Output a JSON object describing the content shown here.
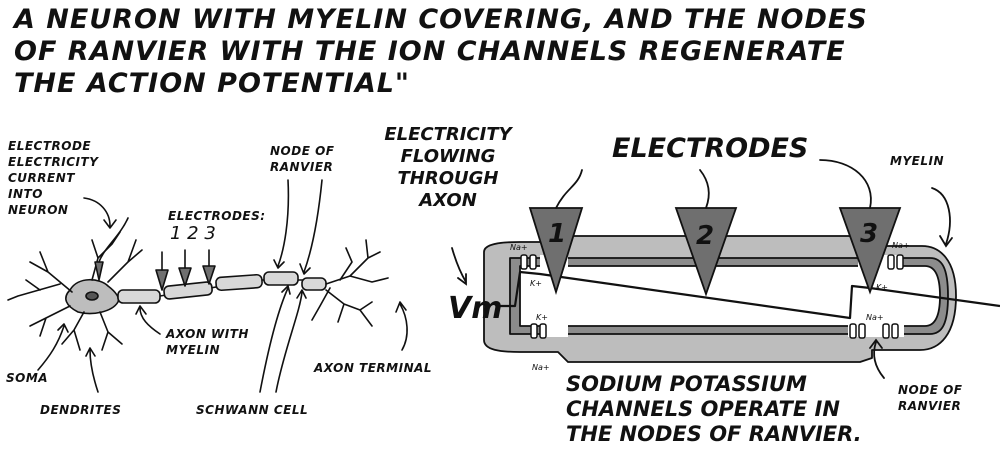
{
  "title": "A neuron with myelin covering, and the nodes of Ranvier with the ion channels regenerate the action potential\"",
  "left_diagram": {
    "electrode_current_label": [
      "Electrode",
      "electricity",
      "current",
      "into",
      "neuron"
    ],
    "electrodes_label": "Electrodes:",
    "electrode_numbers": "1 2 3",
    "node_label": [
      "Node of",
      "Ranvier"
    ],
    "axon_myelin_label": [
      "Axon with",
      "myelin"
    ],
    "soma_label": "Soma",
    "dendrites_label": "Dendrites",
    "schwann_label": "Schwann cell",
    "axon_terminal_label": "Axon terminal"
  },
  "right_diagram": {
    "flow_label": [
      "Electricity",
      "flowing",
      "through",
      "axon"
    ],
    "electrodes_title": "Electrodes",
    "electrode_numbers": [
      "1",
      "2",
      "3"
    ],
    "myelin_label": "Myelin",
    "vm_label": "Vm",
    "channels_text": [
      "Sodium potassium",
      "channels operate in",
      "the nodes of Ranvier."
    ],
    "node_label": [
      "Node of",
      "Ranvier"
    ],
    "ion_labels": [
      "Na+",
      "K+",
      "K+",
      "Na+",
      "Na+",
      "K+",
      "Na+"
    ]
  },
  "colors": {
    "ink": "#111111",
    "gray_light": "#bdbdbd",
    "gray_mid": "#8c8c8c",
    "gray_dark": "#6f6f6f"
  }
}
